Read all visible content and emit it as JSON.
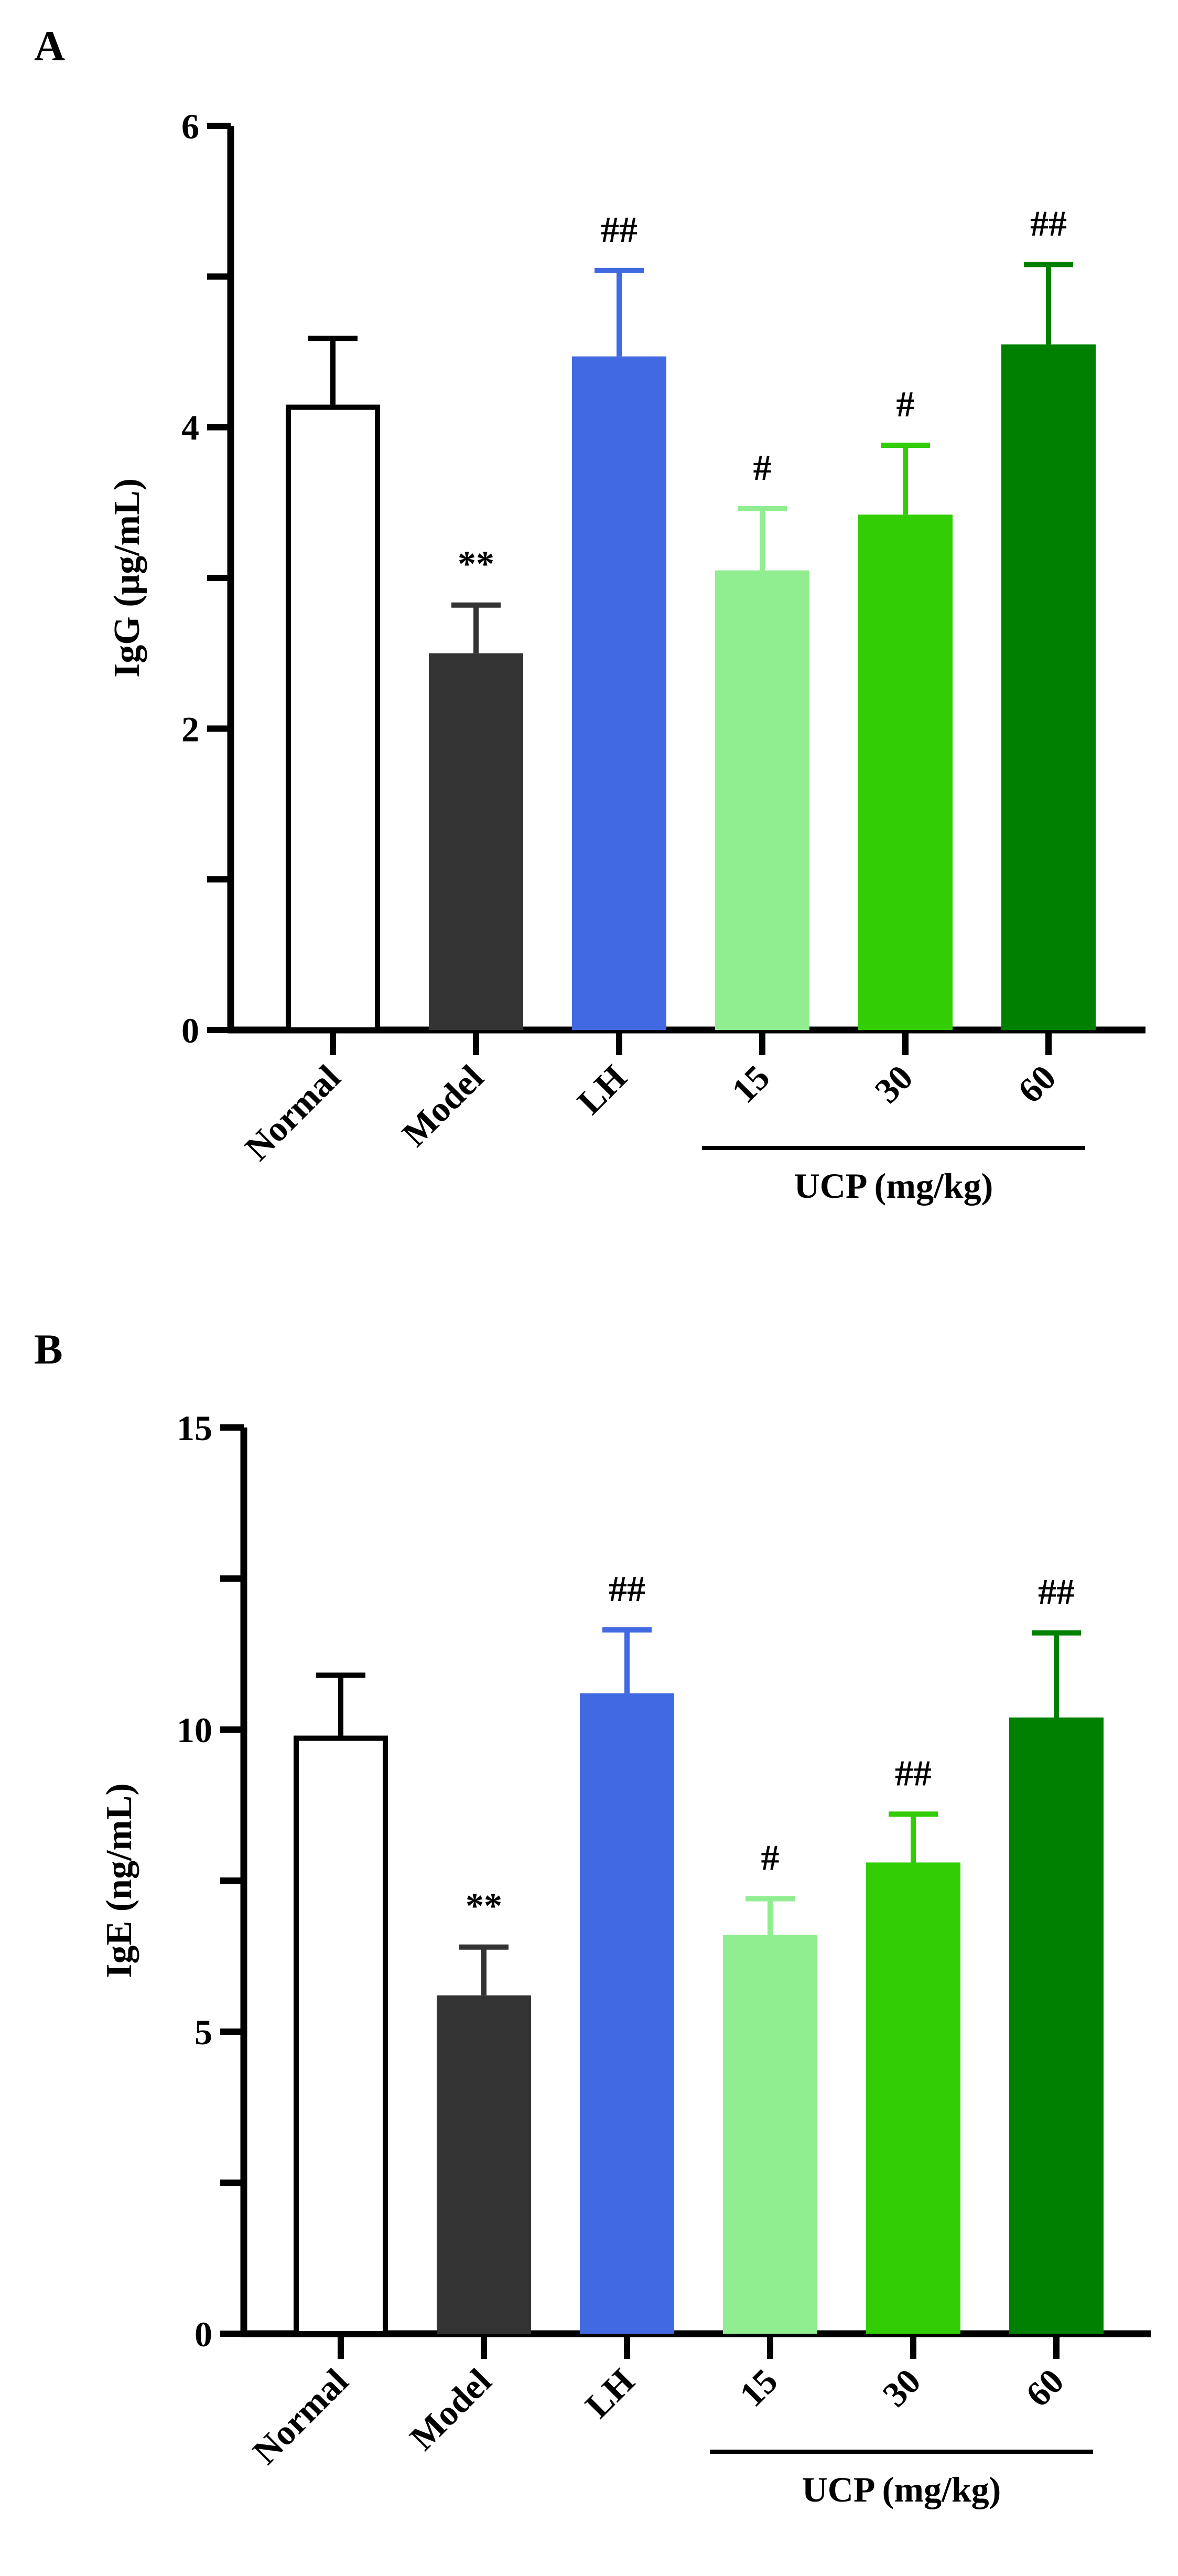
{
  "chart_data": [
    {
      "type": "bar",
      "panel_label": "A",
      "categories": [
        "Normal",
        "Model",
        "LH",
        "15",
        "30",
        "60"
      ],
      "values": [
        4.15,
        2.5,
        4.47,
        3.05,
        3.42,
        4.55
      ],
      "errors": [
        0.44,
        0.32,
        0.57,
        0.41,
        0.46,
        0.53
      ],
      "significance": [
        "",
        "**",
        "##",
        "#",
        "#",
        "##"
      ],
      "colors": [
        "#ffffff",
        "#333333",
        "#4169e1",
        "#90ee90",
        "#32cd04",
        "#008000"
      ],
      "ylabel": "IgG (μg/mL)",
      "ylim": [
        0,
        6
      ],
      "yticks": [
        0,
        2,
        4,
        6
      ],
      "group_label": "UCP (mg/kg)",
      "group_categories": [
        "15",
        "30",
        "60"
      ]
    },
    {
      "type": "bar",
      "panel_label": "B",
      "categories": [
        "Normal",
        "Model",
        "LH",
        "15",
        "30",
        "60"
      ],
      "values": [
        9.9,
        5.6,
        10.6,
        6.6,
        7.8,
        10.2
      ],
      "errors": [
        1.0,
        0.8,
        1.05,
        0.6,
        0.8,
        1.4
      ],
      "significance": [
        "",
        "**",
        "##",
        "#",
        "##",
        "##"
      ],
      "colors": [
        "#ffffff",
        "#333333",
        "#4169e1",
        "#90ee90",
        "#32cd04",
        "#008000"
      ],
      "ylabel": "IgE (ng/mL)",
      "ylim": [
        0,
        15
      ],
      "yticks": [
        0,
        5,
        10,
        15
      ],
      "group_label": "UCP (mg/kg)",
      "group_categories": [
        "15",
        "30",
        "60"
      ]
    }
  ]
}
